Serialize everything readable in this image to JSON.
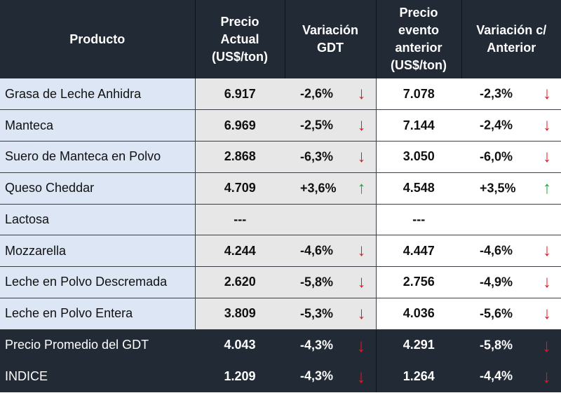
{
  "headers": [
    "Producto",
    "Precio\nActual\n(US$/ton)",
    "Variación\nGDT",
    "Precio\nevento\nanterior\n(US$/ton)",
    "Variación c/\nAnterior"
  ],
  "rows": [
    {
      "product": "Grasa de Leche Anhidra",
      "price": "6.917",
      "var_gdt": "-2,6%",
      "arrow_gdt": "↓",
      "prev": "7.078",
      "var_prev": "-2,3%",
      "arrow_prev": "↓"
    },
    {
      "product": "Manteca",
      "price": "6.969",
      "var_gdt": "-2,5%",
      "arrow_gdt": "↓",
      "prev": "7.144",
      "var_prev": "-2,4%",
      "arrow_prev": "↓"
    },
    {
      "product": "Suero de Manteca en Polvo",
      "price": "2.868",
      "var_gdt": "-6,3%",
      "arrow_gdt": "↓",
      "prev": "3.050",
      "var_prev": "-6,0%",
      "arrow_prev": "↓"
    },
    {
      "product": "Queso Cheddar",
      "price": "4.709",
      "var_gdt": "+3,6%",
      "arrow_gdt": "↑",
      "prev": "4.548",
      "var_prev": "+3,5%",
      "arrow_prev": "↑"
    },
    {
      "product": "Lactosa",
      "price": "---",
      "var_gdt": "",
      "arrow_gdt": "",
      "prev": "---",
      "var_prev": "",
      "arrow_prev": ""
    },
    {
      "product": "Mozzarella",
      "price": "4.244",
      "var_gdt": "-4,6%",
      "arrow_gdt": "↓",
      "prev": "4.447",
      "var_prev": "-4,6%",
      "arrow_prev": "↓"
    },
    {
      "product": "Leche en Polvo Descremada",
      "price": "2.620",
      "var_gdt": "-5,8%",
      "arrow_gdt": "↓",
      "prev": "2.756",
      "var_prev": "-4,9%",
      "arrow_prev": "↓"
    },
    {
      "product": "Leche en Polvo Entera",
      "price": "3.809",
      "var_gdt": "-5,3%",
      "arrow_gdt": "↓",
      "prev": "4.036",
      "var_prev": "-5,6%",
      "arrow_prev": "↓"
    }
  ],
  "summary": [
    {
      "product": "Precio Promedio del GDT",
      "price": "4.043",
      "var_gdt": "-4,3%",
      "arrow_gdt": "↓",
      "prev": "4.291",
      "var_prev": "-5,8%",
      "arrow_prev": "↓"
    },
    {
      "product": "INDICE",
      "price": "1.209",
      "var_gdt": "-4,3%",
      "arrow_gdt": "↓",
      "prev": "1.264",
      "var_prev": "-4,4%",
      "arrow_prev": "↓"
    }
  ],
  "colors": {
    "header_bg": "#222a36",
    "product_bg": "#dce6f4",
    "price_bg": "#e7e7e7",
    "down": "#e8141b",
    "up": "#14a83b"
  }
}
